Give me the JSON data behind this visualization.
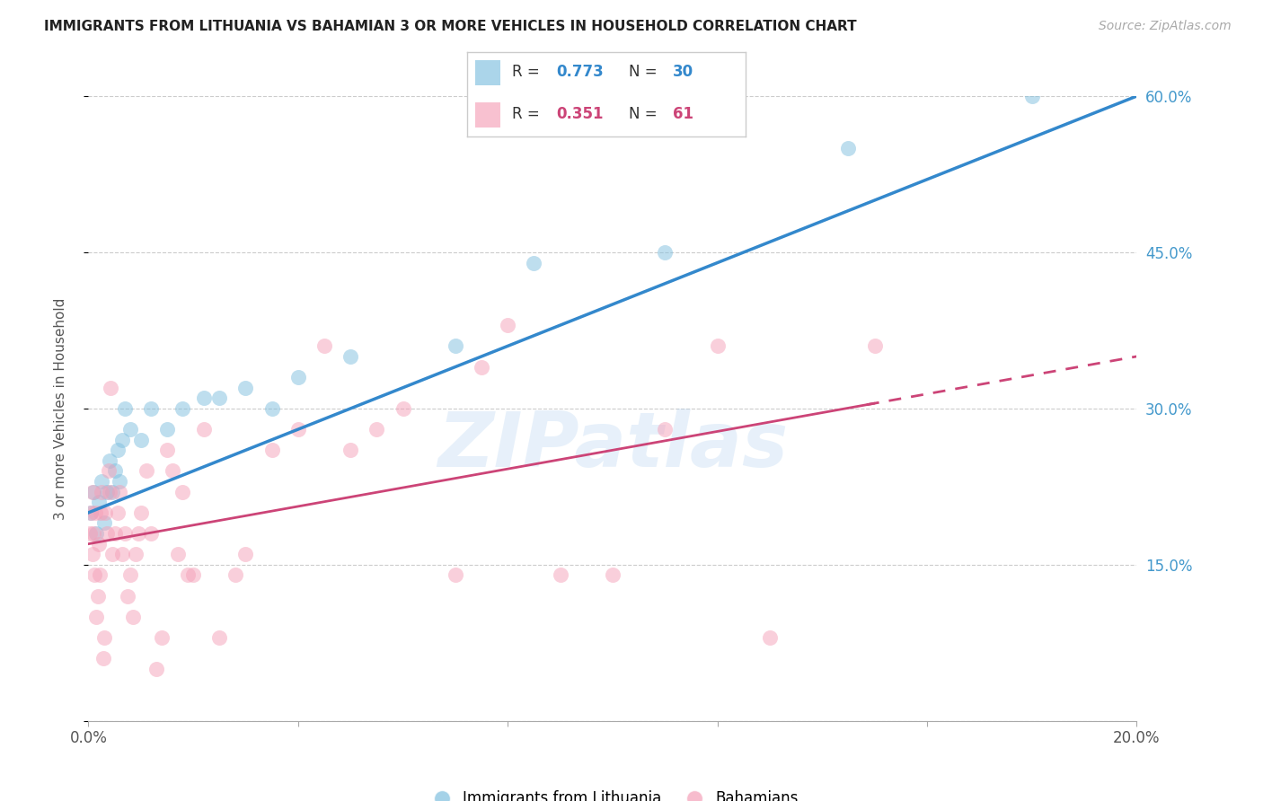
{
  "title": "IMMIGRANTS FROM LITHUANIA VS BAHAMIAN 3 OR MORE VEHICLES IN HOUSEHOLD CORRELATION CHART",
  "source": "Source: ZipAtlas.com",
  "ylabel": "3 or more Vehicles in Household",
  "xlim": [
    0.0,
    20.0
  ],
  "ylim": [
    0.0,
    60.0
  ],
  "yticks": [
    15.0,
    30.0,
    45.0,
    60.0
  ],
  "xticks": [
    0.0,
    4.0,
    8.0,
    12.0,
    16.0,
    20.0
  ],
  "grid_color": "#cccccc",
  "bg_color": "#ffffff",
  "watermark_text": "ZIPatlas",
  "watermark_color": "#aaccee",
  "blue_dot_color": "#7fbfdf",
  "blue_line_color": "#3388cc",
  "pink_dot_color": "#f5a0b8",
  "pink_line_color": "#cc4477",
  "right_axis_color": "#4499cc",
  "blue_R": 0.773,
  "blue_N": 30,
  "pink_R": 0.351,
  "pink_N": 61,
  "legend_label_blue": "Immigrants from Lithuania",
  "legend_label_pink": "Bahamians",
  "blue_x": [
    0.05,
    0.1,
    0.15,
    0.2,
    0.25,
    0.3,
    0.35,
    0.4,
    0.45,
    0.5,
    0.55,
    0.6,
    0.65,
    0.7,
    0.8,
    1.0,
    1.2,
    1.5,
    1.8,
    2.2,
    2.5,
    3.0,
    3.5,
    4.0,
    5.0,
    7.0,
    8.5,
    11.0,
    14.5,
    18.0
  ],
  "blue_y": [
    20.0,
    22.0,
    18.0,
    21.0,
    23.0,
    19.0,
    22.0,
    25.0,
    22.0,
    24.0,
    26.0,
    23.0,
    27.0,
    30.0,
    28.0,
    27.0,
    30.0,
    28.0,
    30.0,
    31.0,
    31.0,
    32.0,
    30.0,
    33.0,
    35.0,
    36.0,
    44.0,
    45.0,
    55.0,
    60.0
  ],
  "pink_x": [
    0.02,
    0.05,
    0.07,
    0.08,
    0.1,
    0.12,
    0.13,
    0.15,
    0.18,
    0.2,
    0.22,
    0.24,
    0.25,
    0.28,
    0.3,
    0.32,
    0.35,
    0.38,
    0.4,
    0.42,
    0.45,
    0.5,
    0.55,
    0.6,
    0.65,
    0.7,
    0.75,
    0.8,
    0.85,
    0.9,
    0.95,
    1.0,
    1.1,
    1.2,
    1.3,
    1.4,
    1.5,
    1.6,
    1.7,
    1.8,
    1.9,
    2.0,
    2.2,
    2.5,
    2.8,
    3.0,
    3.5,
    4.0,
    4.5,
    5.0,
    5.5,
    6.0,
    7.0,
    7.5,
    8.0,
    9.0,
    10.0,
    11.0,
    12.0,
    13.0,
    15.0
  ],
  "pink_y": [
    18.0,
    20.0,
    16.0,
    22.0,
    18.0,
    14.0,
    20.0,
    10.0,
    12.0,
    17.0,
    14.0,
    20.0,
    22.0,
    6.0,
    8.0,
    20.0,
    18.0,
    24.0,
    22.0,
    32.0,
    16.0,
    18.0,
    20.0,
    22.0,
    16.0,
    18.0,
    12.0,
    14.0,
    10.0,
    16.0,
    18.0,
    20.0,
    24.0,
    18.0,
    5.0,
    8.0,
    26.0,
    24.0,
    16.0,
    22.0,
    14.0,
    14.0,
    28.0,
    8.0,
    14.0,
    16.0,
    26.0,
    28.0,
    36.0,
    26.0,
    28.0,
    30.0,
    14.0,
    34.0,
    38.0,
    14.0,
    14.0,
    28.0,
    36.0,
    8.0,
    36.0
  ]
}
